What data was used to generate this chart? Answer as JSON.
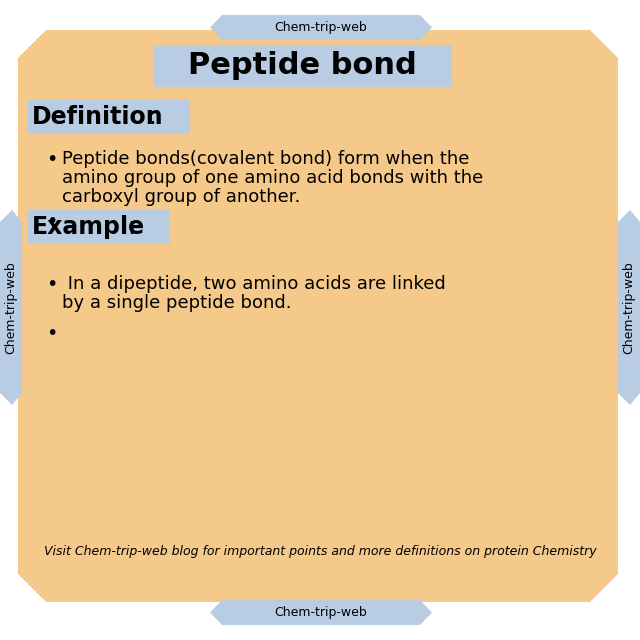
{
  "bg_color": "#ffffff",
  "main_bg_color": "#f5c98a",
  "tab_color": "#b8cce4",
  "title": "Peptide bond",
  "title_highlight": "#b8cce4",
  "title_fontsize": 22,
  "definition_label": "Definition",
  "definition_colon": ":",
  "definition_highlight": "#b8cce4",
  "definition_fontsize": 17,
  "bullet1_line1": "Peptide bonds(covalent bond) form when the",
  "bullet1_line2": "amino group of one amino acid bonds with the",
  "bullet1_line3": "carboxyl group of another.",
  "example_label": "Example",
  "example_colon": ":",
  "example_highlight": "#b8cce4",
  "example_fontsize": 17,
  "bullet3_line1": " In a dipeptide, two amino acids are linked",
  "bullet3_line2": "by a single peptide bond.",
  "footer_text": "Visit Chem-trip-web blog for important points and more definitions on protein Chemistry",
  "watermark": "Chem-trip-web",
  "body_fontsize": 13,
  "footer_fontsize": 9,
  "watermark_fontsize": 9
}
